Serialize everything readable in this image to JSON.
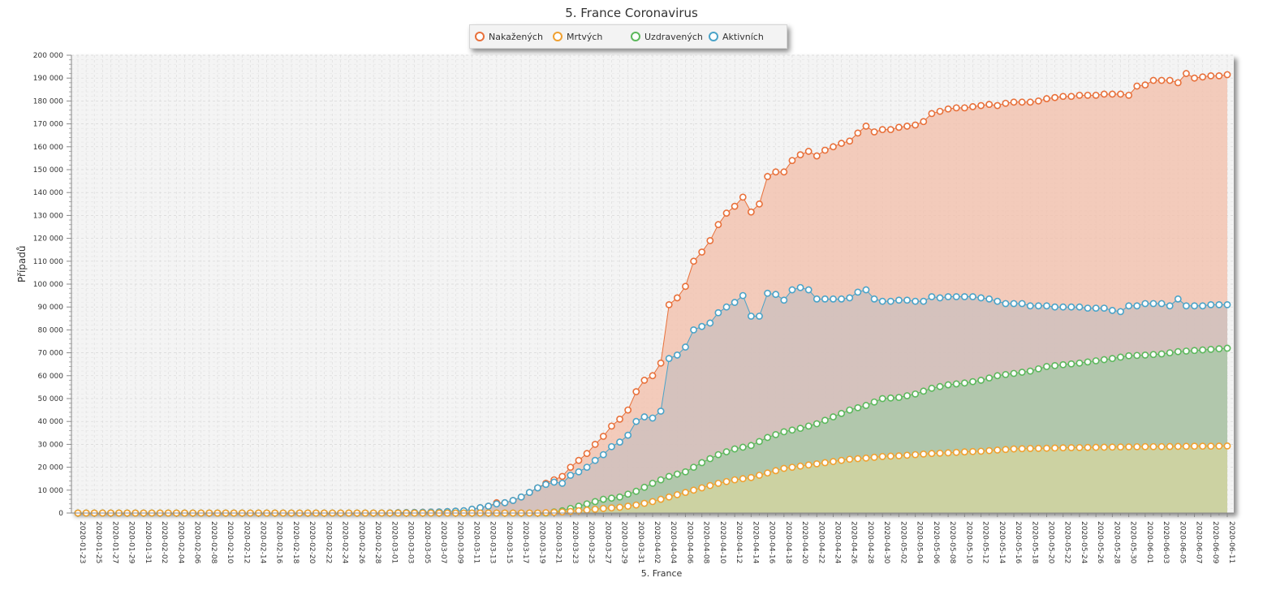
{
  "chart_data": {
    "type": "area",
    "title": "5. France Coronavirus",
    "xlabel": "5. France",
    "ylabel": "Případů",
    "ylim": [
      0,
      200000
    ],
    "y_ticks": [
      "0",
      "10 000",
      "20 000",
      "30 000",
      "40 000",
      "50 000",
      "60 000",
      "70 000",
      "80 000",
      "90 000",
      "100 000",
      "110 000",
      "120 000",
      "130 000",
      "140 000",
      "150 000",
      "160 000",
      "170 000",
      "180 000",
      "190 000",
      "200 000"
    ],
    "y_tick_values": [
      0,
      10000,
      20000,
      30000,
      40000,
      50000,
      60000,
      70000,
      80000,
      90000,
      100000,
      110000,
      120000,
      130000,
      140000,
      150000,
      160000,
      170000,
      180000,
      190000,
      200000
    ],
    "x_start": "2020-01-23",
    "x_end": "2020-06-11",
    "x_label_every_days": 2,
    "grid": true,
    "legend": "top-center",
    "series": [
      {
        "name": "Nakažených",
        "color": "#e8703a",
        "fill": "#f2c1ad",
        "values": [
          [
            0,
            0
          ],
          [
            36,
            0
          ],
          [
            40,
            200
          ],
          [
            44,
            500
          ],
          [
            47,
            1000
          ],
          [
            50,
            3000
          ],
          [
            51,
            4500
          ],
          [
            52,
            4500
          ],
          [
            53,
            5500
          ],
          [
            54,
            7000
          ],
          [
            55,
            9000
          ],
          [
            56,
            11000
          ],
          [
            57,
            13000
          ],
          [
            58,
            14500
          ],
          [
            59,
            16000
          ],
          [
            60,
            20000
          ],
          [
            61,
            23000
          ],
          [
            62,
            26000
          ],
          [
            63,
            30000
          ],
          [
            64,
            33500
          ],
          [
            65,
            38000
          ],
          [
            66,
            41000
          ],
          [
            67,
            45000
          ],
          [
            68,
            53000
          ],
          [
            69,
            58000
          ],
          [
            70,
            60000
          ],
          [
            71,
            65500
          ],
          [
            72,
            91000
          ],
          [
            73,
            94000
          ],
          [
            74,
            99000
          ],
          [
            75,
            110000
          ],
          [
            76,
            114000
          ],
          [
            77,
            119000
          ],
          [
            78,
            126000
          ],
          [
            79,
            131000
          ],
          [
            80,
            134000
          ],
          [
            81,
            138000
          ],
          [
            82,
            131500
          ],
          [
            83,
            135000
          ],
          [
            84,
            147000
          ],
          [
            85,
            149000
          ],
          [
            86,
            149000
          ],
          [
            87,
            154000
          ],
          [
            88,
            156500
          ],
          [
            89,
            158000
          ],
          [
            90,
            156000
          ],
          [
            91,
            158500
          ],
          [
            92,
            160000
          ],
          [
            93,
            161500
          ],
          [
            94,
            162500
          ],
          [
            95,
            166000
          ],
          [
            96,
            169000
          ],
          [
            97,
            166500
          ],
          [
            98,
            167500
          ],
          [
            99,
            167500
          ],
          [
            100,
            168500
          ],
          [
            101,
            169000
          ],
          [
            102,
            169500
          ],
          [
            103,
            171000
          ],
          [
            104,
            174500
          ],
          [
            105,
            175500
          ],
          [
            106,
            176500
          ],
          [
            107,
            177000
          ],
          [
            108,
            177000
          ],
          [
            109,
            177500
          ],
          [
            110,
            178000
          ],
          [
            111,
            178500
          ],
          [
            112,
            178000
          ],
          [
            113,
            179000
          ],
          [
            114,
            179500
          ],
          [
            115,
            179500
          ],
          [
            116,
            179500
          ],
          [
            117,
            180000
          ],
          [
            118,
            181000
          ],
          [
            119,
            181500
          ],
          [
            120,
            182000
          ],
          [
            121,
            182000
          ],
          [
            122,
            182500
          ],
          [
            123,
            182500
          ],
          [
            124,
            182500
          ],
          [
            125,
            183000
          ],
          [
            126,
            183000
          ],
          [
            127,
            183000
          ],
          [
            128,
            182500
          ],
          [
            129,
            186500
          ],
          [
            130,
            187000
          ],
          [
            131,
            189000
          ],
          [
            132,
            189000
          ],
          [
            133,
            189000
          ],
          [
            134,
            188000
          ],
          [
            135,
            192000
          ],
          [
            136,
            190000
          ],
          [
            137,
            190500
          ],
          [
            138,
            191000
          ],
          [
            139,
            191000
          ],
          [
            140,
            191500
          ],
          [
            141,
            191500
          ],
          [
            142,
            192000
          ],
          [
            143,
            192500
          ]
        ]
      },
      {
        "name": "Mrtvých",
        "color": "#f0a030",
        "fill": "#d3d5a0",
        "values": [
          [
            0,
            0
          ],
          [
            56,
            0
          ],
          [
            58,
            300
          ],
          [
            60,
            700
          ],
          [
            62,
            1300
          ],
          [
            64,
            2000
          ],
          [
            66,
            2500
          ],
          [
            68,
            3500
          ],
          [
            70,
            5000
          ],
          [
            72,
            7000
          ],
          [
            74,
            9000
          ],
          [
            76,
            11000
          ],
          [
            78,
            13000
          ],
          [
            80,
            14500
          ],
          [
            82,
            15500
          ],
          [
            84,
            17500
          ],
          [
            86,
            19500
          ],
          [
            88,
            20500
          ],
          [
            90,
            21500
          ],
          [
            92,
            22500
          ],
          [
            94,
            23500
          ],
          [
            96,
            24000
          ],
          [
            98,
            24700
          ],
          [
            100,
            25000
          ],
          [
            102,
            25500
          ],
          [
            104,
            26000
          ],
          [
            106,
            26300
          ],
          [
            108,
            26700
          ],
          [
            110,
            27000
          ],
          [
            112,
            27500
          ],
          [
            114,
            28000
          ],
          [
            116,
            28200
          ],
          [
            118,
            28300
          ],
          [
            120,
            28500
          ],
          [
            122,
            28600
          ],
          [
            124,
            28700
          ],
          [
            126,
            28800
          ],
          [
            128,
            28900
          ],
          [
            130,
            29000
          ],
          [
            132,
            29000
          ],
          [
            134,
            29100
          ],
          [
            136,
            29200
          ],
          [
            138,
            29200
          ],
          [
            140,
            29300
          ],
          [
            143,
            29400
          ]
        ]
      },
      {
        "name": "Uzdravených",
        "color": "#5cb85c",
        "fill": "#a8c8a8",
        "values": [
          [
            0,
            0
          ],
          [
            57,
            0
          ],
          [
            58,
            500
          ],
          [
            59,
            1000
          ],
          [
            60,
            2000
          ],
          [
            62,
            4000
          ],
          [
            64,
            6000
          ],
          [
            66,
            7000
          ],
          [
            68,
            9500
          ],
          [
            70,
            13000
          ],
          [
            72,
            16000
          ],
          [
            74,
            18000
          ],
          [
            76,
            22000
          ],
          [
            78,
            25500
          ],
          [
            80,
            28000
          ],
          [
            82,
            29500
          ],
          [
            84,
            33000
          ],
          [
            86,
            35500
          ],
          [
            88,
            37000
          ],
          [
            90,
            39000
          ],
          [
            92,
            42000
          ],
          [
            94,
            45000
          ],
          [
            96,
            47000
          ],
          [
            98,
            50000
          ],
          [
            100,
            50500
          ],
          [
            102,
            52000
          ],
          [
            104,
            54500
          ],
          [
            106,
            56000
          ],
          [
            108,
            56800
          ],
          [
            110,
            58000
          ],
          [
            112,
            60000
          ],
          [
            114,
            61000
          ],
          [
            116,
            62000
          ],
          [
            118,
            64000
          ],
          [
            120,
            64800
          ],
          [
            122,
            65500
          ],
          [
            124,
            66500
          ],
          [
            126,
            67500
          ],
          [
            128,
            68700
          ],
          [
            130,
            69000
          ],
          [
            132,
            69500
          ],
          [
            134,
            70500
          ],
          [
            136,
            71000
          ],
          [
            138,
            71500
          ],
          [
            140,
            72000
          ],
          [
            143,
            72500
          ]
        ]
      },
      {
        "name": "Aktivních",
        "color": "#4aa3c8",
        "fill": "#cdbfbe",
        "values": [
          [
            0,
            0
          ],
          [
            36,
            0
          ],
          [
            40,
            200
          ],
          [
            44,
            500
          ],
          [
            47,
            1000
          ],
          [
            50,
            3000
          ],
          [
            51,
            4000
          ],
          [
            52,
            4500
          ],
          [
            53,
            5500
          ],
          [
            54,
            7000
          ],
          [
            55,
            9000
          ],
          [
            56,
            11000
          ],
          [
            57,
            12500
          ],
          [
            58,
            13500
          ],
          [
            59,
            13000
          ],
          [
            60,
            16500
          ],
          [
            61,
            18000
          ],
          [
            62,
            20000
          ],
          [
            63,
            23000
          ],
          [
            64,
            25500
          ],
          [
            65,
            29000
          ],
          [
            66,
            31000
          ],
          [
            67,
            34000
          ],
          [
            68,
            40000
          ],
          [
            69,
            42000
          ],
          [
            70,
            41500
          ],
          [
            71,
            44500
          ],
          [
            72,
            67500
          ],
          [
            73,
            69000
          ],
          [
            74,
            72500
          ],
          [
            75,
            80000
          ],
          [
            76,
            81500
          ],
          [
            77,
            83000
          ],
          [
            78,
            87500
          ],
          [
            79,
            90000
          ],
          [
            80,
            92000
          ],
          [
            81,
            95000
          ],
          [
            82,
            86000
          ],
          [
            83,
            86000
          ],
          [
            84,
            96000
          ],
          [
            85,
            95500
          ],
          [
            86,
            93000
          ],
          [
            87,
            97500
          ],
          [
            88,
            98500
          ],
          [
            89,
            97500
          ],
          [
            90,
            93500
          ],
          [
            91,
            93500
          ],
          [
            92,
            93500
          ],
          [
            93,
            93500
          ],
          [
            94,
            94000
          ],
          [
            95,
            96500
          ],
          [
            96,
            97500
          ],
          [
            97,
            93500
          ],
          [
            98,
            92500
          ],
          [
            99,
            92500
          ],
          [
            100,
            93000
          ],
          [
            101,
            93000
          ],
          [
            102,
            92500
          ],
          [
            103,
            92500
          ],
          [
            104,
            94500
          ],
          [
            105,
            94000
          ],
          [
            106,
            94500
          ],
          [
            107,
            94500
          ],
          [
            108,
            94500
          ],
          [
            109,
            94500
          ],
          [
            110,
            94000
          ],
          [
            111,
            93500
          ],
          [
            112,
            92500
          ],
          [
            113,
            91500
          ],
          [
            114,
            91500
          ],
          [
            115,
            91500
          ],
          [
            116,
            90500
          ],
          [
            117,
            90500
          ],
          [
            118,
            90500
          ],
          [
            119,
            90000
          ],
          [
            120,
            90000
          ],
          [
            121,
            90000
          ],
          [
            122,
            90000
          ],
          [
            123,
            89500
          ],
          [
            124,
            89500
          ],
          [
            125,
            89500
          ],
          [
            126,
            88500
          ],
          [
            127,
            88000
          ],
          [
            128,
            90500
          ],
          [
            129,
            90500
          ],
          [
            130,
            91500
          ],
          [
            131,
            91500
          ],
          [
            132,
            91500
          ],
          [
            133,
            90500
          ],
          [
            134,
            93500
          ],
          [
            135,
            90500
          ],
          [
            136,
            90500
          ],
          [
            137,
            90500
          ],
          [
            138,
            91000
          ],
          [
            139,
            91000
          ],
          [
            140,
            91000
          ],
          [
            141,
            91000
          ],
          [
            142,
            91000
          ],
          [
            143,
            91000
          ]
        ]
      }
    ]
  }
}
